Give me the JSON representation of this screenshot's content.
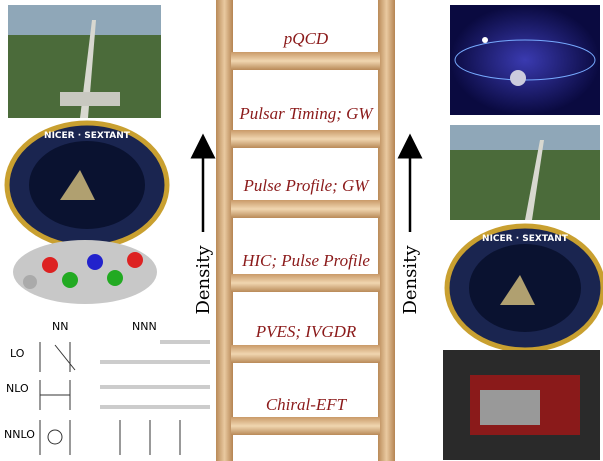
{
  "ladder": {
    "rungs": [
      "pQCD",
      "Pulsar Timing; GW",
      "Pulse Profile; GW",
      "HIC; Pulse Profile",
      "PVES; IVGDR",
      "Chiral-EFT"
    ]
  },
  "arrows": {
    "left": "Density",
    "right": "Density"
  },
  "badges": {
    "top": "NICER · SEXTANT"
  },
  "diagram": {
    "columns": [
      "NN",
      "NNN"
    ],
    "orders": [
      "LO",
      "NLO",
      "NNLO"
    ]
  }
}
